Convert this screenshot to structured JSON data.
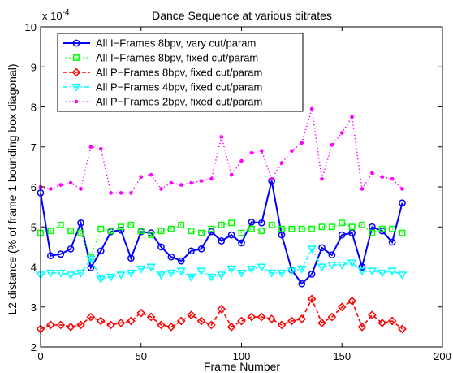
{
  "chart_data": {
    "type": "line",
    "title": "Dance Sequence at various bitrates",
    "xlabel": "Frame Number",
    "ylabel": "L2 distance (% of frame 1 bounding box diagonal)",
    "exponent_label": "x 10",
    "exponent_power": "-4",
    "xlim": [
      0,
      200
    ],
    "ylim": [
      2,
      10
    ],
    "xticks": [
      0,
      50,
      100,
      150,
      200
    ],
    "yticks": [
      2,
      3,
      4,
      5,
      6,
      7,
      8,
      9,
      10
    ],
    "grid": false,
    "legend_position": "top-left",
    "x": [
      0,
      5,
      10,
      15,
      20,
      25,
      30,
      35,
      40,
      45,
      50,
      55,
      60,
      65,
      70,
      75,
      80,
      85,
      90,
      95,
      100,
      105,
      110,
      115,
      120,
      125,
      130,
      135,
      140,
      145,
      150,
      155,
      160,
      165,
      170,
      175,
      180
    ],
    "series": [
      {
        "name": "All I−Frames 8bpv, vary cut/param",
        "color": "#0000ff",
        "style": "solid",
        "marker": "circle",
        "values": [
          5.85,
          4.28,
          4.32,
          4.45,
          5.1,
          3.98,
          4.4,
          4.88,
          4.92,
          4.22,
          4.88,
          4.85,
          4.5,
          4.25,
          4.15,
          4.4,
          4.45,
          4.88,
          4.65,
          4.8,
          4.6,
          5.12,
          5.1,
          6.15,
          4.8,
          3.92,
          3.58,
          3.82,
          4.48,
          4.3,
          4.8,
          4.85,
          4.0,
          5.0,
          4.9,
          4.62,
          5.6
        ]
      },
      {
        "name": "All I−Frames 8bpv, fixed cut/param",
        "color": "#00ff00",
        "style": "dotted",
        "marker": "square",
        "values": [
          4.85,
          4.9,
          5.05,
          4.9,
          4.85,
          4.25,
          4.95,
          4.9,
          5.0,
          5.05,
          4.9,
          4.8,
          4.9,
          4.95,
          5.05,
          4.9,
          4.85,
          4.95,
          5.05,
          5.1,
          4.85,
          4.95,
          4.9,
          5.05,
          4.95,
          4.95,
          4.95,
          4.95,
          5.0,
          5.0,
          5.1,
          5.0,
          5.05,
          4.85,
          4.95,
          4.95,
          4.85
        ]
      },
      {
        "name": "All P−Frames 8bpv, fixed cut/param",
        "color": "#ff0000",
        "style": "dashed",
        "marker": "diamond",
        "values": [
          2.45,
          2.55,
          2.55,
          2.5,
          2.55,
          2.75,
          2.65,
          2.55,
          2.6,
          2.65,
          2.85,
          2.75,
          2.55,
          2.5,
          2.65,
          2.8,
          2.65,
          2.55,
          2.95,
          2.5,
          2.65,
          2.75,
          2.75,
          2.7,
          2.55,
          2.65,
          2.7,
          3.2,
          2.6,
          2.75,
          3.0,
          3.15,
          2.5,
          2.8,
          2.6,
          2.65,
          2.45
        ]
      },
      {
        "name": "All P−Frames 4bpv, fixed cut/param",
        "color": "#00ffff",
        "style": "dashdot",
        "marker": "triangle-down",
        "values": [
          3.8,
          3.85,
          3.85,
          3.8,
          3.85,
          4.2,
          3.7,
          3.75,
          3.8,
          3.85,
          3.95,
          4.0,
          3.8,
          3.85,
          3.9,
          3.75,
          3.9,
          3.75,
          3.8,
          3.95,
          3.85,
          3.95,
          4.0,
          3.85,
          3.85,
          3.9,
          3.95,
          4.45,
          4.0,
          4.05,
          4.05,
          4.1,
          3.9,
          3.9,
          3.85,
          3.9,
          3.8
        ]
      },
      {
        "name": "All P−Frames 2bpv, fixed cut/param",
        "color": "#ff00ff",
        "style": "dotted",
        "marker": "point",
        "values": [
          6.0,
          5.95,
          6.05,
          6.1,
          5.95,
          7.0,
          6.95,
          5.85,
          5.85,
          5.85,
          6.25,
          6.3,
          5.95,
          6.1,
          6.05,
          6.1,
          6.15,
          6.2,
          7.25,
          6.3,
          6.65,
          6.85,
          6.9,
          6.2,
          6.6,
          6.9,
          7.1,
          7.95,
          6.2,
          7.05,
          7.35,
          7.75,
          5.95,
          6.35,
          6.25,
          6.2,
          5.95
        ]
      }
    ]
  }
}
